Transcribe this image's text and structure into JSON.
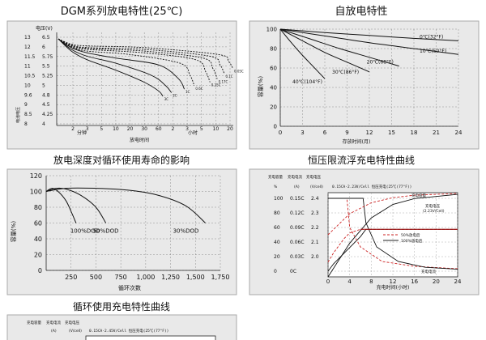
{
  "charts": {
    "dgm": {
      "title": "DGM系列放电特性(25℃)",
      "ylabel": "电压(V)",
      "ylabel_side": "电池电压",
      "xlabel": "放电时间",
      "minutes_label": "分钟",
      "hours_label": "小时",
      "curve_labels": [
        "3C",
        "2C",
        "1C",
        "0.6C",
        "0.25C",
        "0.17C",
        "0.1C",
        "0.05C"
      ]
    },
    "self": {
      "title": "自放电特性",
      "ylabel": "容量(%)",
      "xlabel": "存放时间(月)",
      "curve_labels": [
        "0℃(32°F)",
        "10℃(50°F)",
        "20℃(68°F)",
        "30℃(86°F)",
        "40℃(104°F)"
      ]
    },
    "dod": {
      "title": "放电深度对循环使用寿命的影响",
      "ylabel": "容量(%)",
      "xlabel": "循环次数",
      "curve_labels": [
        "100%DOD",
        "50%DOD",
        "30%DOD"
      ]
    },
    "float": {
      "title": "恒压限流浮充电特性曲线",
      "header_charge": "充电容量",
      "header_current": "充电电流",
      "header_voltage": "充电电压",
      "unit_pct": "%",
      "unit_a": "(A)",
      "unit_v": "(V/cell)",
      "note": "0.15CA-2.23V/Cell 恒压充电(25℃(77°F))",
      "xlabel": "充电时间(小时)",
      "label_capacity": "充电容量",
      "label_voltage": "充电电压",
      "label_voltage_sub": "(2.23V/Cell)",
      "label_current": "充电电流",
      "legend": [
        "50%放电后",
        "100%放电后"
      ]
    },
    "cycle": {
      "title": "循环使用充电特性曲线",
      "header_charge": "充电容量",
      "header_current": "充电电流",
      "header_voltage": "充电电压",
      "unit_a": "(A)",
      "unit_v": "(V/cell)",
      "note": "0.15CA-2.45V/Cell 恒压充电(25℃(77°F))"
    }
  },
  "chart_data": [
    {
      "type": "line",
      "title": "DGM系列放电特性(25℃)",
      "ylabel": "电压(V)",
      "xlabel": "放电时间",
      "y_ticks_12v": [
        13,
        12,
        11.5,
        11,
        10.5,
        10,
        9.6,
        9.0,
        8.5,
        8.0
      ],
      "y_ticks_6v": [
        6.5,
        6.0,
        5.75,
        5.5,
        5.25,
        5.0,
        4.8,
        4.5,
        4.25,
        4.0
      ],
      "x_ticks": [
        "2",
        "3",
        "5",
        "10",
        "20",
        "30",
        "60",
        "2",
        "3",
        "5",
        "10",
        "20"
      ],
      "series": [
        {
          "name": "3C",
          "points": [
            [
              0.0,
              6.45
            ],
            [
              0.3,
              6.1
            ],
            [
              1,
              5.85
            ],
            [
              3,
              5.55
            ],
            [
              5,
              5.2
            ],
            [
              6,
              4.95
            ],
            [
              6.3,
              4.8
            ]
          ]
        },
        {
          "name": "2C",
          "points": [
            [
              0.0,
              6.45
            ],
            [
              0.3,
              6.15
            ],
            [
              1,
              5.95
            ],
            [
              3,
              5.75
            ],
            [
              5.5,
              5.4
            ],
            [
              6.5,
              5.1
            ],
            [
              6.9,
              4.9
            ]
          ]
        },
        {
          "name": "1C",
          "points": [
            [
              0.0,
              6.45
            ],
            [
              0.3,
              6.2
            ],
            [
              1,
              6.05
            ],
            [
              3,
              5.9
            ],
            [
              6,
              5.7
            ],
            [
              7.4,
              5.3
            ],
            [
              7.8,
              5.0
            ]
          ]
        },
        {
          "name": "0.6C",
          "points": [
            [
              0.0,
              6.45
            ],
            [
              0.3,
              6.22
            ],
            [
              1,
              6.1
            ],
            [
              4,
              6.0
            ],
            [
              7.5,
              5.75
            ],
            [
              8.2,
              5.4
            ],
            [
              8.5,
              5.1
            ]
          ]
        },
        {
          "name": "0.25C",
          "points": [
            [
              0.0,
              6.45
            ],
            [
              0.3,
              6.24
            ],
            [
              1,
              6.15
            ],
            [
              5,
              6.05
            ],
            [
              8.6,
              5.85
            ],
            [
              9.3,
              5.5
            ],
            [
              9.6,
              5.2
            ]
          ]
        },
        {
          "name": "0.17C",
          "points": [
            [
              0.0,
              6.45
            ],
            [
              0.3,
              6.26
            ],
            [
              1,
              6.18
            ],
            [
              5,
              6.1
            ],
            [
              9.1,
              5.9
            ],
            [
              9.8,
              5.6
            ],
            [
              10.1,
              5.3
            ]
          ]
        },
        {
          "name": "0.1C",
          "points": [
            [
              0.0,
              6.45
            ],
            [
              0.3,
              6.28
            ],
            [
              1,
              6.2
            ],
            [
              5,
              6.15
            ],
            [
              9.6,
              5.95
            ],
            [
              10.3,
              5.7
            ],
            [
              10.6,
              5.45
            ]
          ]
        },
        {
          "name": "0.05C",
          "points": [
            [
              0.0,
              6.45
            ],
            [
              0.3,
              6.3
            ],
            [
              1,
              6.25
            ],
            [
              5,
              6.2
            ],
            [
              10.2,
              6.0
            ],
            [
              10.9,
              5.8
            ],
            [
              11.2,
              5.6
            ]
          ]
        }
      ]
    },
    {
      "type": "line",
      "title": "自放电特性",
      "ylabel": "容量(%)",
      "xlabel": "存放时间(月)",
      "xlim": [
        0,
        24
      ],
      "ylim": [
        0,
        100
      ],
      "x_ticks": [
        0,
        3,
        6,
        9,
        12,
        15,
        18,
        21,
        24
      ],
      "y_ticks": [
        0,
        20,
        40,
        60,
        80,
        100
      ],
      "series": [
        {
          "name": "0℃(32°F)",
          "x": [
            0,
            6,
            12,
            18,
            24
          ],
          "y": [
            100,
            96.5,
            93.5,
            90.5,
            88
          ]
        },
        {
          "name": "10℃(50°F)",
          "x": [
            0,
            6,
            12,
            18,
            24
          ],
          "y": [
            100,
            93,
            86,
            80,
            74
          ]
        },
        {
          "name": "20℃(68°F)",
          "x": [
            0,
            4,
            8,
            12,
            16
          ],
          "y": [
            100,
            90,
            80,
            71,
            62
          ]
        },
        {
          "name": "30℃(86°F)",
          "x": [
            0,
            3,
            6,
            9,
            12
          ],
          "y": [
            100,
            88,
            76,
            66,
            56
          ]
        },
        {
          "name": "40℃(104°F)",
          "x": [
            0,
            1.5,
            3,
            4.5,
            6
          ],
          "y": [
            100,
            86,
            73,
            61,
            49
          ]
        }
      ]
    },
    {
      "type": "line",
      "title": "放电深度对循环使用寿命的影响",
      "ylabel": "容量(%)",
      "xlabel": "循环次数",
      "xlim": [
        0,
        1750
      ],
      "ylim": [
        0,
        120
      ],
      "x_ticks": [
        250,
        500,
        750,
        "1,000",
        "1,250",
        "1,500",
        "1,750"
      ],
      "y_ticks": [
        120,
        100,
        80,
        60,
        40,
        20,
        0
      ],
      "series": [
        {
          "name": "100%DOD",
          "x": [
            0,
            60,
            120,
            200,
            260,
            300
          ],
          "y": [
            100,
            104,
            100,
            88,
            72,
            60
          ]
        },
        {
          "name": "50%DOD",
          "x": [
            0,
            100,
            200,
            350,
            500,
            600
          ],
          "y": [
            100,
            104,
            103,
            95,
            80,
            60
          ]
        },
        {
          "name": "30%DOD",
          "x": [
            0,
            200,
            500,
            800,
            1100,
            1400,
            1600
          ],
          "y": [
            100,
            104,
            104,
            102,
            96,
            82,
            60
          ]
        }
      ]
    },
    {
      "type": "line",
      "title": "恒压限流浮充电特性曲线",
      "xlabel": "充电时间(小时)",
      "xlim": [
        0,
        24
      ],
      "x_ticks": [
        0,
        4,
        8,
        12,
        16,
        20,
        24
      ],
      "y_ticks_pct": [
        0,
        20,
        40,
        60,
        80,
        100
      ],
      "y_ticks_current": [
        "0C",
        "0.03C",
        "0.06C",
        "0.09C",
        "0.12C",
        "0.15C"
      ],
      "y_ticks_voltage": [
        2.4,
        2.3,
        2.2,
        2.1,
        2.0
      ],
      "series": [
        {
          "name": "充电电压 (50%放电后)",
          "x": [
            0,
            1,
            2,
            3,
            4,
            6,
            24
          ],
          "y_voltage": [
            2.05,
            2.1,
            2.14,
            2.18,
            2.21,
            2.23,
            2.23
          ]
        },
        {
          "name": "充电电压 (100%放电后)",
          "x": [
            0,
            1,
            2,
            4,
            6,
            7,
            24
          ],
          "y_voltage": [
            2.0,
            2.04,
            2.07,
            2.13,
            2.19,
            2.23,
            2.23
          ]
        },
        {
          "name": "充电电流 (50%放电后)",
          "x": [
            0,
            3.5,
            4,
            6,
            10,
            16,
            24
          ],
          "y_current": [
            0.15,
            0.15,
            0.09,
            0.05,
            0.02,
            0.01,
            0.005
          ]
        },
        {
          "name": "充电电流 (100%放电后)",
          "x": [
            0,
            6.5,
            7,
            9,
            13,
            18,
            24
          ],
          "y_current": [
            0.15,
            0.15,
            0.1,
            0.05,
            0.02,
            0.008,
            0.004
          ]
        },
        {
          "name": "充电容量 (50%放电后)",
          "x": [
            0,
            4,
            8,
            12,
            16,
            24
          ],
          "y_pct": [
            50,
            75,
            88,
            94,
            97,
            99
          ]
        },
        {
          "name": "充电容量 (100%放电后)",
          "x": [
            0,
            4,
            8,
            12,
            16,
            24
          ],
          "y_pct": [
            0,
            40,
            70,
            86,
            93,
            98
          ]
        }
      ]
    },
    {
      "type": "line",
      "title": "循环使用充电特性曲线",
      "series": []
    }
  ]
}
